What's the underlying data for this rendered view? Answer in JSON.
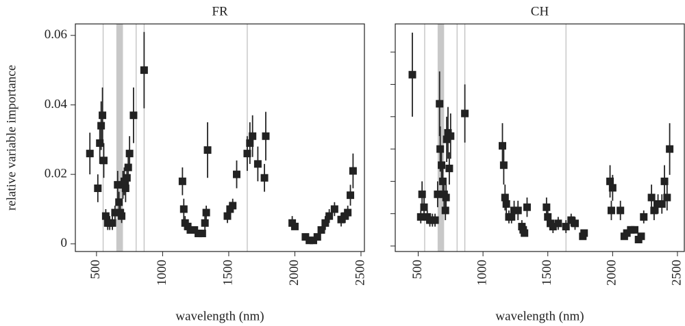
{
  "chart_data": [
    {
      "type": "scatter",
      "title": "FR",
      "x_label": "wavelength (nm)",
      "y_label": "relative variable importance",
      "color": "#222222",
      "xlim": [
        340,
        2526
      ],
      "ylim": [
        -0.0022,
        0.0633
      ],
      "xticks": [
        500,
        1000,
        1500,
        2000,
        2500
      ],
      "yticks": [
        0,
        0.02,
        0.04,
        0.06
      ],
      "ytick_labels": true,
      "ref_lines": [
        550,
        800,
        860,
        1640
      ],
      "ref_band": [
        650,
        700
      ],
      "x": [
        450,
        510,
        525,
        535,
        545,
        555,
        570,
        585,
        600,
        620,
        640,
        660,
        670,
        680,
        690,
        700,
        710,
        720,
        730,
        740,
        750,
        780,
        860,
        1150,
        1160,
        1170,
        1190,
        1210,
        1240,
        1270,
        1300,
        1320,
        1330,
        1340,
        1490,
        1510,
        1530,
        1560,
        1640,
        1660,
        1680,
        1720,
        1770,
        1780,
        1980,
        2000,
        2080,
        2110,
        2140,
        2170,
        2200,
        2230,
        2260,
        2300,
        2350,
        2380,
        2400,
        2420,
        2440
      ],
      "values": [
        0.026,
        0.016,
        0.029,
        0.034,
        0.037,
        0.024,
        0.008,
        0.006,
        0.006,
        0.006,
        0.009,
        0.017,
        0.012,
        0.009,
        0.008,
        0.017,
        0.018,
        0.016,
        0.019,
        0.022,
        0.026,
        0.037,
        0.05,
        0.018,
        0.01,
        0.006,
        0.005,
        0.004,
        0.004,
        0.003,
        0.003,
        0.006,
        0.009,
        0.027,
        0.008,
        0.01,
        0.011,
        0.02,
        0.026,
        0.029,
        0.031,
        0.023,
        0.019,
        0.031,
        0.006,
        0.005,
        0.002,
        0.001,
        0.001,
        0.002,
        0.004,
        0.006,
        0.008,
        0.01,
        0.007,
        0.008,
        0.009,
        0.014,
        0.021
      ],
      "errors": [
        0.006,
        0.004,
        0.006,
        0.007,
        0.008,
        0.005,
        0.002,
        0.002,
        0.002,
        0.002,
        0.002,
        0.004,
        0.003,
        0.002,
        0.002,
        0.004,
        0.004,
        0.004,
        0.004,
        0.005,
        0.005,
        0.008,
        0.011,
        0.004,
        0.003,
        0.002,
        0.002,
        0.001,
        0.001,
        0.001,
        0.001,
        0.002,
        0.002,
        0.008,
        0.002,
        0.002,
        0.002,
        0.004,
        0.005,
        0.006,
        0.006,
        0.005,
        0.004,
        0.007,
        0.002,
        0.001,
        0.001,
        0.001,
        0.001,
        0.001,
        0.001,
        0.002,
        0.002,
        0.002,
        0.002,
        0.002,
        0.002,
        0.003,
        0.005
      ]
    },
    {
      "type": "scatter",
      "title": "CH",
      "x_label": "wavelength (nm)",
      "color": "#222222",
      "xlim": [
        323,
        2553
      ],
      "ylim": [
        -0.0017,
        0.0687
      ],
      "xticks": [
        500,
        1000,
        1500,
        2000,
        2500
      ],
      "yticks": [
        0,
        0.01,
        0.02,
        0.03,
        0.04,
        0.05,
        0.06
      ],
      "ytick_labels": false,
      "ref_lines": [
        550,
        800,
        860,
        1640
      ],
      "ref_band": [
        650,
        700
      ],
      "x": [
        455,
        520,
        530,
        545,
        570,
        590,
        610,
        630,
        650,
        665,
        670,
        680,
        690,
        700,
        710,
        715,
        720,
        730,
        740,
        750,
        860,
        1150,
        1160,
        1170,
        1180,
        1200,
        1220,
        1240,
        1270,
        1300,
        1310,
        1320,
        1340,
        1490,
        1500,
        1520,
        1540,
        1580,
        1640,
        1680,
        1710,
        1770,
        1780,
        1980,
        1990,
        2000,
        2060,
        2090,
        2110,
        2140,
        2170,
        2200,
        2220,
        2240,
        2300,
        2320,
        2350,
        2380,
        2400,
        2420,
        2440
      ],
      "values": [
        0.053,
        0.009,
        0.016,
        0.012,
        0.009,
        0.008,
        0.008,
        0.008,
        0.016,
        0.044,
        0.03,
        0.025,
        0.02,
        0.016,
        0.011,
        0.015,
        0.033,
        0.035,
        0.024,
        0.034,
        0.041,
        0.031,
        0.025,
        0.015,
        0.013,
        0.009,
        0.009,
        0.011,
        0.011,
        0.006,
        0.005,
        0.004,
        0.012,
        0.012,
        0.009,
        0.007,
        0.006,
        0.007,
        0.006,
        0.008,
        0.007,
        0.003,
        0.004,
        0.02,
        0.011,
        0.018,
        0.011,
        0.003,
        0.004,
        0.005,
        0.005,
        0.002,
        0.003,
        0.009,
        0.015,
        0.011,
        0.013,
        0.013,
        0.02,
        0.015,
        0.03
      ],
      "errors": [
        0.013,
        0.002,
        0.004,
        0.003,
        0.002,
        0.002,
        0.002,
        0.002,
        0.004,
        0.01,
        0.007,
        0.006,
        0.005,
        0.004,
        0.003,
        0.004,
        0.007,
        0.008,
        0.005,
        0.007,
        0.009,
        0.007,
        0.006,
        0.004,
        0.003,
        0.002,
        0.002,
        0.003,
        0.003,
        0.002,
        0.001,
        0.001,
        0.003,
        0.003,
        0.002,
        0.002,
        0.002,
        0.002,
        0.002,
        0.002,
        0.002,
        0.001,
        0.001,
        0.005,
        0.003,
        0.004,
        0.003,
        0.001,
        0.001,
        0.001,
        0.001,
        0.001,
        0.001,
        0.002,
        0.004,
        0.003,
        0.003,
        0.003,
        0.005,
        0.004,
        0.008
      ]
    }
  ]
}
